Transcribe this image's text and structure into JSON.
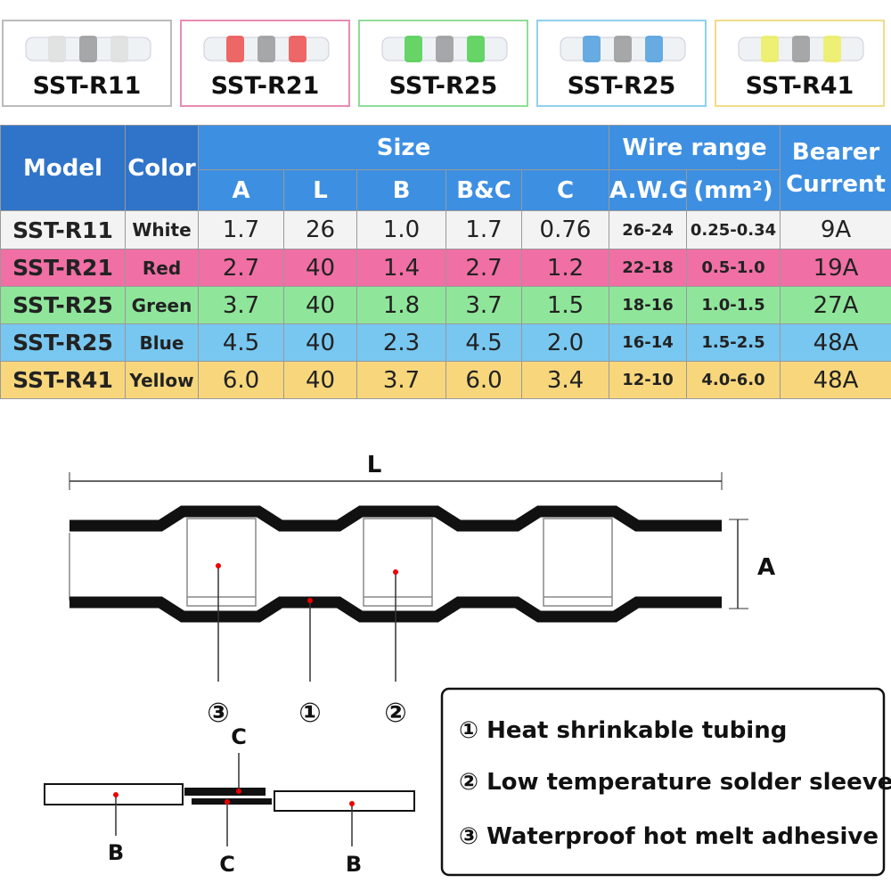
{
  "products": [
    {
      "label": "SST-R11"
    },
    {
      "label": "SST-R21"
    },
    {
      "label": "SST-R25"
    },
    {
      "label": "SST-R25"
    },
    {
      "label": "SST-R41"
    }
  ],
  "table": {
    "header": {
      "model": "Model",
      "color": "Color",
      "size": "Size",
      "size_cols": [
        "A",
        "L",
        "B",
        "B&C",
        "C"
      ],
      "wire_range": "Wire range",
      "wire_cols": [
        "A.W.G",
        "(mm²)"
      ],
      "bearer": "Bearer Current"
    },
    "rows": [
      [
        "SST-R11",
        "White",
        "1.7",
        "26",
        "1.0",
        "1.7",
        "0.76",
        "26-24",
        "0.25-0.34",
        "9A"
      ],
      [
        "SST-R21",
        "Red",
        "2.7",
        "40",
        "1.4",
        "2.7",
        "1.2",
        "22-18",
        "0.5-1.0",
        "19A"
      ],
      [
        "SST-R25",
        "Green",
        "3.7",
        "40",
        "1.8",
        "3.7",
        "1.5",
        "18-16",
        "1.0-1.5",
        "27A"
      ],
      [
        "SST-R25",
        "Blue",
        "4.5",
        "40",
        "2.3",
        "4.5",
        "2.0",
        "16-14",
        "1.5-2.5",
        "48A"
      ],
      [
        "SST-R41",
        "Yellow",
        "6.0",
        "40",
        "3.7",
        "6.0",
        "3.4",
        "12-10",
        "4.0-6.0",
        "48A"
      ]
    ]
  },
  "diagram": {
    "length_label": "L",
    "diameter_label": "A",
    "callouts": [
      "③",
      "①",
      "②"
    ],
    "section_labels": [
      "C",
      "C",
      "B",
      "B"
    ]
  },
  "legend": [
    "① Heat shrinkable tubing",
    "② Low temperature solder sleeve",
    "③ Waterproof hot melt adhesive"
  ]
}
